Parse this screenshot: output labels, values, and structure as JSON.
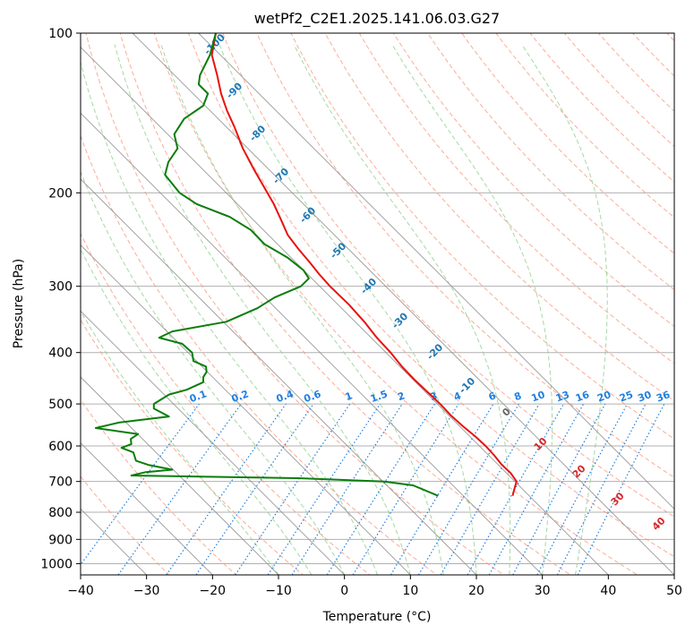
{
  "chart_data": {
    "type": "line",
    "chart_kind": "Skew-T log-P diagram",
    "title": "wetPf2_C2E1.2025.141.06.03.G27",
    "xlabel": "Temperature (°C)",
    "ylabel": "Pressure (hPa)",
    "xlim": [
      -40,
      50
    ],
    "ylim": [
      1050,
      100
    ],
    "y_scale": "log",
    "grid": true,
    "x_ticks": [
      -40,
      -30,
      -20,
      -10,
      0,
      10,
      20,
      30,
      40,
      50
    ],
    "y_ticks": [
      100,
      200,
      300,
      400,
      500,
      600,
      700,
      800,
      900,
      1000
    ],
    "isotherm_labels": [
      "-100",
      "-90",
      "-80",
      "-70",
      "-60",
      "-50",
      "-40",
      "-30",
      "-20",
      "-10",
      "0",
      "10",
      "20",
      "30",
      "40"
    ],
    "mixing_ratio_labels": [
      "0.1",
      "0.2",
      "0.4",
      "0.6",
      "1",
      "1.5",
      "2",
      "3",
      "4",
      "6",
      "8",
      "10",
      "13",
      "16",
      "20",
      "25",
      "30",
      "36"
    ],
    "colors": {
      "temperature": "#e8120e",
      "dewpoint": "#0b7d0b",
      "dry_adiabats": "#fa8a6e",
      "moist_adiabats": "#8fcf8f",
      "mixing_ratio": "#1f7fe0",
      "isotherms": "#8c8c8c",
      "isotherm_label": "#1f77b4",
      "isotherm_label_warm": "#d62728",
      "isotherm_label_zero": "#666666",
      "isobars": "#b0b0b0"
    },
    "series": [
      {
        "key": "temperature",
        "x_is": "x-axis reading (°C)",
        "points": [
          [
            -19.5,
            100
          ],
          [
            -20.1,
            110
          ],
          [
            -19.3,
            120
          ],
          [
            -18.7,
            130
          ],
          [
            -17.8,
            140
          ],
          [
            -16.7,
            150
          ],
          [
            -15.4,
            165
          ],
          [
            -13.8,
            180
          ],
          [
            -12.2,
            195
          ],
          [
            -10.7,
            210
          ],
          [
            -9.6,
            225
          ],
          [
            -8.6,
            240
          ],
          [
            -7.0,
            255
          ],
          [
            -5.3,
            270
          ],
          [
            -3.8,
            285
          ],
          [
            -2.2,
            300
          ],
          [
            0.7,
            325
          ],
          [
            3.0,
            350
          ],
          [
            4.9,
            375
          ],
          [
            7.0,
            400
          ],
          [
            8.7,
            425
          ],
          [
            10.6,
            450
          ],
          [
            12.6,
            475
          ],
          [
            14.5,
            500
          ],
          [
            16.1,
            525
          ],
          [
            17.9,
            550
          ],
          [
            19.8,
            575
          ],
          [
            21.4,
            600
          ],
          [
            22.7,
            625
          ],
          [
            23.8,
            650
          ],
          [
            25.2,
            675
          ],
          [
            26.1,
            700
          ],
          [
            25.8,
            720
          ],
          [
            25.6,
            735
          ],
          [
            25.5,
            745
          ]
        ]
      },
      {
        "key": "dewpoint",
        "x_is": "x-axis reading (°C)",
        "points": [
          [
            -19.5,
            100
          ],
          [
            -20.4,
            110
          ],
          [
            -21.9,
            120
          ],
          [
            -22.1,
            125
          ],
          [
            -20.7,
            130
          ],
          [
            -21.4,
            137
          ],
          [
            -24.3,
            145
          ],
          [
            -25.8,
            155
          ],
          [
            -25.3,
            165
          ],
          [
            -26.7,
            175
          ],
          [
            -27.2,
            185
          ],
          [
            -25.0,
            200
          ],
          [
            -22.4,
            210
          ],
          [
            -17.4,
            222
          ],
          [
            -14.2,
            235
          ],
          [
            -12.1,
            250
          ],
          [
            -8.6,
            265
          ],
          [
            -6.2,
            280
          ],
          [
            -5.4,
            290
          ],
          [
            -6.6,
            300
          ],
          [
            -10.6,
            315
          ],
          [
            -13.2,
            330
          ],
          [
            -17.9,
            350
          ],
          [
            -26.1,
            365
          ],
          [
            -28.1,
            375
          ],
          [
            -24.6,
            385
          ],
          [
            -23.1,
            400
          ],
          [
            -22.9,
            415
          ],
          [
            -21.0,
            425
          ],
          [
            -20.9,
            435
          ],
          [
            -21.4,
            445
          ],
          [
            -21.4,
            455
          ],
          [
            -23.9,
            470
          ],
          [
            -26.6,
            480
          ],
          [
            -28.9,
            500
          ],
          [
            -28.9,
            510
          ],
          [
            -26.6,
            528
          ],
          [
            -34.2,
            542
          ],
          [
            -37.7,
            555
          ],
          [
            -31.3,
            570
          ],
          [
            -32.4,
            582
          ],
          [
            -32.3,
            595
          ],
          [
            -33.8,
            605
          ],
          [
            -32.0,
            617
          ],
          [
            -31.6,
            640
          ],
          [
            -29.6,
            652
          ],
          [
            -26.1,
            665
          ],
          [
            -30.1,
            672
          ],
          [
            -32.3,
            682
          ],
          [
            -7.0,
            690
          ],
          [
            6.0,
            700
          ],
          [
            10.4,
            712
          ],
          [
            14.2,
            745
          ]
        ]
      }
    ]
  }
}
